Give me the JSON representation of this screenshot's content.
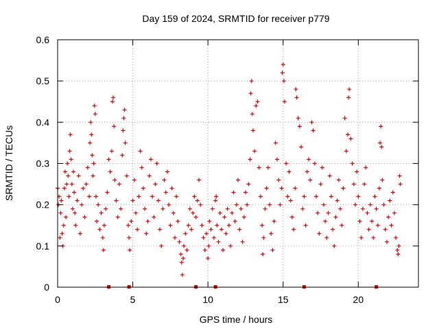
{
  "chart_data": {
    "type": "scatter",
    "title": "Day 159 of 2024, SRMTID for receiver p779",
    "xlabel": "GPS time / hours",
    "ylabel": "SRMTID / TECUs",
    "xlim": [
      0,
      24
    ],
    "ylim": [
      0,
      0.6
    ],
    "xticks": [
      0,
      5,
      10,
      15,
      20
    ],
    "xtick_labels": [
      "0",
      "5",
      "10",
      "15",
      "20"
    ],
    "yticks": [
      0,
      0.1,
      0.2,
      0.3,
      0.4,
      0.5,
      0.6
    ],
    "ytick_labels": [
      "0",
      "0.1",
      "0.2",
      "0.3",
      "0.4",
      "0.5",
      "0.6"
    ],
    "grid": true,
    "marker": "plus",
    "color": "#e00000",
    "series": [
      {
        "name": "SRMTID",
        "points": [
          [
            0.0,
            0.24
          ],
          [
            0.05,
            0.2
          ],
          [
            0.1,
            0.22
          ],
          [
            0.15,
            0.12
          ],
          [
            0.2,
            0.18
          ],
          [
            0.25,
            0.21
          ],
          [
            0.3,
            0.13
          ],
          [
            0.35,
            0.1
          ],
          [
            0.4,
            0.15
          ],
          [
            0.45,
            0.24
          ],
          [
            0.5,
            0.28
          ],
          [
            0.55,
            0.17
          ],
          [
            0.6,
            0.25
          ],
          [
            0.65,
            0.3
          ],
          [
            0.7,
            0.27
          ],
          [
            0.75,
            0.22
          ],
          [
            0.8,
            0.33
          ],
          [
            0.85,
            0.37
          ],
          [
            0.9,
            0.31
          ],
          [
            0.95,
            0.25
          ],
          [
            1.0,
            0.19
          ],
          [
            1.05,
            0.28
          ],
          [
            1.1,
            0.23
          ],
          [
            1.15,
            0.18
          ],
          [
            1.2,
            0.15
          ],
          [
            1.3,
            0.21
          ],
          [
            1.4,
            0.27
          ],
          [
            1.5,
            0.13
          ],
          [
            1.6,
            0.2
          ],
          [
            1.7,
            0.24
          ],
          [
            1.8,
            0.17
          ],
          [
            1.9,
            0.25
          ],
          [
            2.0,
            0.29
          ],
          [
            2.1,
            0.22
          ],
          [
            2.15,
            0.35
          ],
          [
            2.2,
            0.4
          ],
          [
            2.25,
            0.37
          ],
          [
            2.3,
            0.32
          ],
          [
            2.35,
            0.27
          ],
          [
            2.4,
            0.3
          ],
          [
            2.45,
            0.44
          ],
          [
            2.5,
            0.42
          ],
          [
            2.55,
            0.22
          ],
          [
            2.6,
            0.16
          ],
          [
            2.7,
            0.2
          ],
          [
            2.8,
            0.14
          ],
          [
            2.9,
            0.18
          ],
          [
            3.0,
            0.12
          ],
          [
            3.05,
            0.09
          ],
          [
            3.1,
            0.15
          ],
          [
            3.2,
            0.19
          ],
          [
            3.3,
            0.23
          ],
          [
            3.4,
            0.31
          ],
          [
            3.5,
            0.28
          ],
          [
            3.6,
            0.33
          ],
          [
            3.65,
            0.45
          ],
          [
            3.7,
            0.46
          ],
          [
            3.75,
            0.39
          ],
          [
            3.8,
            0.26
          ],
          [
            3.9,
            0.21
          ],
          [
            4.0,
            0.17
          ],
          [
            4.1,
            0.25
          ],
          [
            4.2,
            0.19
          ],
          [
            4.3,
            0.32
          ],
          [
            4.35,
            0.38
          ],
          [
            4.4,
            0.41
          ],
          [
            4.45,
            0.43
          ],
          [
            4.5,
            0.35
          ],
          [
            4.6,
            0.27
          ],
          [
            4.7,
            0.15
          ],
          [
            4.75,
            0.12
          ],
          [
            4.8,
            0.09
          ],
          [
            4.9,
            0.16
          ],
          [
            5.0,
            0.21
          ],
          [
            5.1,
            0.26
          ],
          [
            5.2,
            0.18
          ],
          [
            5.3,
            0.14
          ],
          [
            5.4,
            0.22
          ],
          [
            5.5,
            0.33
          ],
          [
            5.6,
            0.29
          ],
          [
            5.7,
            0.24
          ],
          [
            5.8,
            0.19
          ],
          [
            5.9,
            0.13
          ],
          [
            6.0,
            0.16
          ],
          [
            6.1,
            0.27
          ],
          [
            6.2,
            0.31
          ],
          [
            6.3,
            0.22
          ],
          [
            6.4,
            0.17
          ],
          [
            6.5,
            0.25
          ],
          [
            6.6,
            0.3
          ],
          [
            6.7,
            0.21
          ],
          [
            6.8,
            0.14
          ],
          [
            6.9,
            0.1
          ],
          [
            7.0,
            0.19
          ],
          [
            7.1,
            0.26
          ],
          [
            7.2,
            0.23
          ],
          [
            7.3,
            0.28
          ],
          [
            7.4,
            0.2
          ],
          [
            7.5,
            0.15
          ],
          [
            7.6,
            0.24
          ],
          [
            7.7,
            0.18
          ],
          [
            7.8,
            0.12
          ],
          [
            7.9,
            0.22
          ],
          [
            8.0,
            0.16
          ],
          [
            8.1,
            0.11
          ],
          [
            8.2,
            0.08
          ],
          [
            8.25,
            0.06
          ],
          [
            8.3,
            0.03
          ],
          [
            8.35,
            0.07
          ],
          [
            8.4,
            0.1
          ],
          [
            8.5,
            0.13
          ],
          [
            8.6,
            0.09
          ],
          [
            8.7,
            0.15
          ],
          [
            8.8,
            0.19
          ],
          [
            8.9,
            0.14
          ],
          [
            9.0,
            0.18
          ],
          [
            9.1,
            0.22
          ],
          [
            9.2,
            0.17
          ],
          [
            9.3,
            0.21
          ],
          [
            9.4,
            0.26
          ],
          [
            9.5,
            0.2
          ],
          [
            9.6,
            0.15
          ],
          [
            9.7,
            0.12
          ],
          [
            9.8,
            0.09
          ],
          [
            9.9,
            0.13
          ],
          [
            10.0,
            0.07
          ],
          [
            10.05,
            0.1
          ],
          [
            10.1,
            0.16
          ],
          [
            10.2,
            0.14
          ],
          [
            10.3,
            0.19
          ],
          [
            10.4,
            0.12
          ],
          [
            10.5,
            0.21
          ],
          [
            10.55,
            0.22
          ],
          [
            10.6,
            0.15
          ],
          [
            10.7,
            0.11
          ],
          [
            10.8,
            0.18
          ],
          [
            10.9,
            0.14
          ],
          [
            11.0,
            0.09
          ],
          [
            11.1,
            0.17
          ],
          [
            11.2,
            0.13
          ],
          [
            11.3,
            0.19
          ],
          [
            11.4,
            0.15
          ],
          [
            11.5,
            0.1
          ],
          [
            11.6,
            0.18
          ],
          [
            11.7,
            0.23
          ],
          [
            11.8,
            0.16
          ],
          [
            11.9,
            0.2
          ],
          [
            12.0,
            0.26
          ],
          [
            12.1,
            0.14
          ],
          [
            12.2,
            0.19
          ],
          [
            12.3,
            0.11
          ],
          [
            12.4,
            0.17
          ],
          [
            12.5,
            0.23
          ],
          [
            12.6,
            0.2
          ],
          [
            12.7,
            0.25
          ],
          [
            12.8,
            0.31
          ],
          [
            12.85,
            0.47
          ],
          [
            12.9,
            0.5
          ],
          [
            12.95,
            0.42
          ],
          [
            13.0,
            0.38
          ],
          [
            13.1,
            0.33
          ],
          [
            13.2,
            0.44
          ],
          [
            13.3,
            0.45
          ],
          [
            13.4,
            0.29
          ],
          [
            13.5,
            0.22
          ],
          [
            13.6,
            0.15
          ],
          [
            13.65,
            0.08
          ],
          [
            13.7,
            0.12
          ],
          [
            13.8,
            0.19
          ],
          [
            13.9,
            0.24
          ],
          [
            14.0,
            0.29
          ],
          [
            14.1,
            0.2
          ],
          [
            14.2,
            0.13
          ],
          [
            14.3,
            0.09
          ],
          [
            14.4,
            0.16
          ],
          [
            14.5,
            0.35
          ],
          [
            14.6,
            0.31
          ],
          [
            14.7,
            0.26
          ],
          [
            14.8,
            0.2
          ],
          [
            14.9,
            0.24
          ],
          [
            14.95,
            0.52
          ],
          [
            15.0,
            0.54
          ],
          [
            15.05,
            0.5
          ],
          [
            15.1,
            0.45
          ],
          [
            15.2,
            0.3
          ],
          [
            15.3,
            0.22
          ],
          [
            15.4,
            0.28
          ],
          [
            15.5,
            0.21
          ],
          [
            15.6,
            0.17
          ],
          [
            15.7,
            0.14
          ],
          [
            15.8,
            0.24
          ],
          [
            15.85,
            0.48
          ],
          [
            15.9,
            0.46
          ],
          [
            16.0,
            0.41
          ],
          [
            16.1,
            0.39
          ],
          [
            16.2,
            0.34
          ],
          [
            16.3,
            0.19
          ],
          [
            16.4,
            0.22
          ],
          [
            16.5,
            0.15
          ],
          [
            16.6,
            0.28
          ],
          [
            16.7,
            0.31
          ],
          [
            16.8,
            0.26
          ],
          [
            16.9,
            0.4
          ],
          [
            17.0,
            0.38
          ],
          [
            17.1,
            0.3
          ],
          [
            17.2,
            0.22
          ],
          [
            17.3,
            0.18
          ],
          [
            17.4,
            0.13
          ],
          [
            17.5,
            0.25
          ],
          [
            17.6,
            0.29
          ],
          [
            17.7,
            0.2
          ],
          [
            17.8,
            0.16
          ],
          [
            17.9,
            0.12
          ],
          [
            18.0,
            0.18
          ],
          [
            18.1,
            0.27
          ],
          [
            18.2,
            0.22
          ],
          [
            18.3,
            0.14
          ],
          [
            18.4,
            0.1
          ],
          [
            18.5,
            0.17
          ],
          [
            18.6,
            0.21
          ],
          [
            18.7,
            0.26
          ],
          [
            18.8,
            0.19
          ],
          [
            18.9,
            0.15
          ],
          [
            19.0,
            0.24
          ],
          [
            19.1,
            0.41
          ],
          [
            19.2,
            0.33
          ],
          [
            19.3,
            0.37
          ],
          [
            19.35,
            0.46
          ],
          [
            19.4,
            0.48
          ],
          [
            19.5,
            0.36
          ],
          [
            19.6,
            0.3
          ],
          [
            19.7,
            0.25
          ],
          [
            19.8,
            0.2
          ],
          [
            19.9,
            0.28
          ],
          [
            20.0,
            0.22
          ],
          [
            20.1,
            0.16
          ],
          [
            20.2,
            0.12
          ],
          [
            20.3,
            0.19
          ],
          [
            20.4,
            0.25
          ],
          [
            20.5,
            0.29
          ],
          [
            20.6,
            0.18
          ],
          [
            20.7,
            0.14
          ],
          [
            20.8,
            0.2
          ],
          [
            20.9,
            0.16
          ],
          [
            21.0,
            0.12
          ],
          [
            21.1,
            0.22
          ],
          [
            21.2,
            0.19
          ],
          [
            21.3,
            0.15
          ],
          [
            21.4,
            0.24
          ],
          [
            21.45,
            0.35
          ],
          [
            21.5,
            0.39
          ],
          [
            21.55,
            0.34
          ],
          [
            21.6,
            0.26
          ],
          [
            21.7,
            0.2
          ],
          [
            21.8,
            0.14
          ],
          [
            21.9,
            0.11
          ],
          [
            22.0,
            0.17
          ],
          [
            22.1,
            0.21
          ],
          [
            22.2,
            0.15
          ],
          [
            22.3,
            0.23
          ],
          [
            22.4,
            0.18
          ],
          [
            22.5,
            0.12
          ],
          [
            22.6,
            0.09
          ],
          [
            22.65,
            0.08
          ],
          [
            22.7,
            0.1
          ],
          [
            22.75,
            0.27
          ],
          [
            22.8,
            0.25
          ]
        ]
      }
    ],
    "baseline_markers_x": [
      3.4,
      4.75,
      9.2,
      10.5,
      16.4,
      21.2
    ]
  }
}
